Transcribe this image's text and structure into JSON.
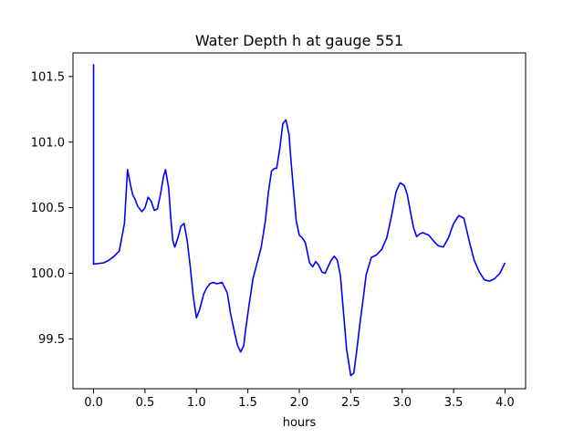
{
  "chart_data": {
    "type": "line",
    "title": "Water Depth h at gauge 551",
    "xlabel": "hours",
    "ylabel": "",
    "xlim": [
      -0.2,
      4.2
    ],
    "ylim": [
      99.12,
      101.68
    ],
    "xticks": [
      0.0,
      0.5,
      1.0,
      1.5,
      2.0,
      2.5,
      3.0,
      3.5,
      4.0
    ],
    "xtick_labels": [
      "0.0",
      "0.5",
      "1.0",
      "1.5",
      "2.0",
      "2.5",
      "3.0",
      "3.5",
      "4.0"
    ],
    "yticks": [
      99.5,
      100.0,
      100.5,
      101.0,
      101.5
    ],
    "ytick_labels": [
      "99.5",
      "100.0",
      "100.5",
      "101.0",
      "101.5"
    ],
    "grid": false,
    "legend": "none",
    "series": [
      {
        "name": "",
        "color": "#0000ff",
        "x": [
          0.0,
          0.0,
          0.0,
          0.1,
          0.15,
          0.2,
          0.25,
          0.3,
          0.33,
          0.36,
          0.38,
          0.4,
          0.43,
          0.47,
          0.5,
          0.53,
          0.56,
          0.59,
          0.62,
          0.65,
          0.68,
          0.7,
          0.73,
          0.75,
          0.77,
          0.79,
          0.82,
          0.85,
          0.88,
          0.91,
          0.94,
          0.97,
          1.0,
          1.03,
          1.07,
          1.1,
          1.13,
          1.16,
          1.2,
          1.25,
          1.3,
          1.33,
          1.37,
          1.4,
          1.43,
          1.46,
          1.48,
          1.51,
          1.55,
          1.6,
          1.63,
          1.67,
          1.7,
          1.73,
          1.76,
          1.78,
          1.81,
          1.84,
          1.87,
          1.9,
          1.92,
          1.95,
          1.97,
          2.0,
          2.03,
          2.06,
          2.1,
          2.13,
          2.16,
          2.19,
          2.22,
          2.25,
          2.28,
          2.31,
          2.34,
          2.37,
          2.4,
          2.43,
          2.46,
          2.5,
          2.53,
          2.56,
          2.59,
          2.62,
          2.65,
          2.7,
          2.75,
          2.8,
          2.85,
          2.9,
          2.94,
          2.98,
          3.02,
          3.05,
          3.08,
          3.11,
          3.14,
          3.17,
          3.2,
          3.23,
          3.26,
          3.3,
          3.35,
          3.4,
          3.45,
          3.5,
          3.55,
          3.6,
          3.63,
          3.66,
          3.7,
          3.75,
          3.8,
          3.85,
          3.9,
          3.95,
          4.0
        ],
        "y": [
          100.07,
          101.59,
          100.07,
          100.08,
          100.1,
          100.13,
          100.17,
          100.38,
          100.79,
          100.67,
          100.6,
          100.57,
          100.51,
          100.47,
          100.5,
          100.58,
          100.55,
          100.48,
          100.49,
          100.6,
          100.74,
          100.79,
          100.65,
          100.43,
          100.25,
          100.2,
          100.27,
          100.36,
          100.38,
          100.25,
          100.05,
          99.82,
          99.66,
          99.72,
          99.84,
          99.89,
          99.92,
          99.93,
          99.92,
          99.93,
          99.85,
          99.7,
          99.55,
          99.45,
          99.4,
          99.45,
          99.58,
          99.75,
          99.96,
          100.11,
          100.2,
          100.4,
          100.62,
          100.78,
          100.8,
          100.8,
          100.95,
          101.14,
          101.17,
          101.06,
          100.85,
          100.58,
          100.4,
          100.29,
          100.27,
          100.23,
          100.08,
          100.05,
          100.09,
          100.06,
          100.01,
          100.0,
          100.05,
          100.1,
          100.13,
          100.1,
          99.98,
          99.7,
          99.42,
          99.22,
          99.24,
          99.42,
          99.62,
          99.8,
          99.99,
          100.12,
          100.14,
          100.18,
          100.27,
          100.45,
          100.62,
          100.69,
          100.67,
          100.6,
          100.47,
          100.35,
          100.28,
          100.3,
          100.31,
          100.3,
          100.29,
          100.25,
          100.21,
          100.2,
          100.27,
          100.38,
          100.44,
          100.42,
          100.32,
          100.22,
          100.1,
          100.01,
          99.95,
          99.94,
          99.96,
          100.0,
          100.08
        ]
      }
    ]
  }
}
